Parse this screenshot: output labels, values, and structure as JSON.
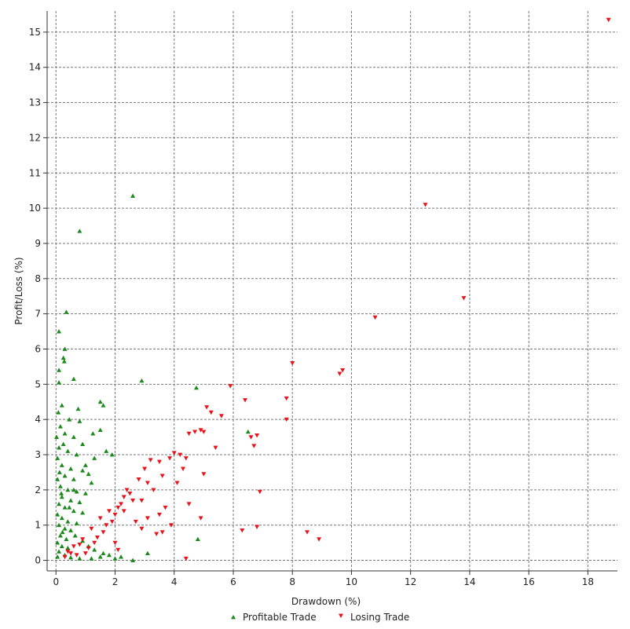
{
  "chart_data": {
    "type": "scatter",
    "xlabel": "Drawdown (%)",
    "ylabel": "Profit/Loss (%)",
    "xlim": [
      -0.3,
      19
    ],
    "ylim": [
      -0.3,
      15.6
    ],
    "x_ticks": [
      0,
      2,
      4,
      6,
      8,
      10,
      12,
      14,
      16,
      18
    ],
    "y_ticks": [
      0,
      1,
      2,
      3,
      4,
      5,
      6,
      7,
      8,
      9,
      10,
      11,
      12,
      13,
      14,
      15
    ],
    "grid": true,
    "legend_position": "bottom",
    "series": [
      {
        "name": "Profitable Trade",
        "color": "#1a8a1a",
        "marker": "triangle-up",
        "points": [
          [
            0.8,
            9.35
          ],
          [
            2.6,
            10.35
          ],
          [
            0.35,
            7.05
          ],
          [
            0.1,
            6.5
          ],
          [
            0.3,
            6.0
          ],
          [
            0.25,
            5.75
          ],
          [
            0.28,
            5.65
          ],
          [
            0.1,
            5.4
          ],
          [
            0.6,
            5.15
          ],
          [
            2.9,
            5.1
          ],
          [
            4.75,
            4.9
          ],
          [
            0.1,
            5.05
          ],
          [
            1.5,
            4.5
          ],
          [
            0.2,
            4.4
          ],
          [
            1.6,
            4.4
          ],
          [
            0.45,
            4.0
          ],
          [
            0.8,
            3.95
          ],
          [
            0.15,
            3.8
          ],
          [
            1.5,
            3.7
          ],
          [
            0.3,
            3.6
          ],
          [
            0.6,
            3.5
          ],
          [
            0.9,
            3.3
          ],
          [
            1.7,
            3.1
          ],
          [
            0.1,
            3.2
          ],
          [
            0.4,
            3.1
          ],
          [
            0.7,
            3.0
          ],
          [
            1.3,
            2.9
          ],
          [
            0.05,
            2.9
          ],
          [
            0.2,
            2.7
          ],
          [
            0.5,
            2.6
          ],
          [
            0.9,
            2.55
          ],
          [
            1.1,
            2.45
          ],
          [
            0.3,
            2.4
          ],
          [
            0.6,
            2.3
          ],
          [
            1.2,
            2.2
          ],
          [
            0.05,
            2.3
          ],
          [
            0.15,
            2.1
          ],
          [
            0.4,
            2.0
          ],
          [
            0.7,
            1.95
          ],
          [
            1.0,
            1.9
          ],
          [
            0.2,
            1.8
          ],
          [
            0.5,
            1.7
          ],
          [
            0.8,
            1.65
          ],
          [
            0.1,
            1.6
          ],
          [
            0.3,
            1.5
          ],
          [
            0.6,
            1.4
          ],
          [
            0.9,
            1.35
          ],
          [
            0.05,
            1.3
          ],
          [
            0.2,
            1.2
          ],
          [
            0.4,
            1.1
          ],
          [
            0.7,
            1.05
          ],
          [
            0.1,
            1.0
          ],
          [
            0.3,
            0.9
          ],
          [
            0.5,
            0.85
          ],
          [
            0.15,
            0.7
          ],
          [
            0.35,
            0.6
          ],
          [
            0.05,
            0.5
          ],
          [
            0.2,
            0.4
          ],
          [
            0.4,
            0.35
          ],
          [
            0.1,
            0.25
          ],
          [
            0.3,
            0.15
          ],
          [
            0.05,
            0.1
          ],
          [
            0.5,
            0.08
          ],
          [
            0.8,
            0.05
          ],
          [
            1.2,
            0.05
          ],
          [
            1.5,
            0.1
          ],
          [
            2.0,
            0.05
          ],
          [
            2.6,
            0.0
          ],
          [
            3.1,
            0.2
          ],
          [
            4.8,
            0.6
          ],
          [
            6.5,
            3.65
          ],
          [
            0.02,
            3.5
          ],
          [
            0.08,
            4.2
          ],
          [
            0.12,
            2.5
          ],
          [
            0.25,
            3.3
          ],
          [
            0.18,
            1.9
          ],
          [
            0.22,
            0.8
          ],
          [
            0.6,
            2.0
          ],
          [
            1.0,
            2.7
          ],
          [
            0.45,
            1.5
          ],
          [
            0.65,
            0.7
          ],
          [
            0.9,
            0.55
          ],
          [
            1.1,
            0.4
          ],
          [
            1.3,
            0.3
          ],
          [
            1.6,
            0.2
          ],
          [
            1.8,
            0.15
          ],
          [
            2.2,
            0.1
          ],
          [
            0.75,
            4.3
          ],
          [
            1.25,
            3.6
          ],
          [
            1.9,
            3.0
          ]
        ]
      },
      {
        "name": "Losing Trade",
        "color": "#e8131b",
        "marker": "triangle-down",
        "points": [
          [
            18.7,
            15.35
          ],
          [
            12.5,
            10.1
          ],
          [
            13.8,
            7.45
          ],
          [
            10.8,
            6.9
          ],
          [
            8.0,
            5.6
          ],
          [
            9.7,
            5.4
          ],
          [
            9.6,
            5.3
          ],
          [
            5.9,
            4.95
          ],
          [
            7.8,
            4.6
          ],
          [
            6.4,
            4.55
          ],
          [
            5.1,
            4.35
          ],
          [
            5.6,
            4.1
          ],
          [
            5.25,
            4.2
          ],
          [
            7.8,
            4.0
          ],
          [
            4.9,
            3.7
          ],
          [
            4.7,
            3.65
          ],
          [
            5.0,
            3.65
          ],
          [
            4.5,
            3.6
          ],
          [
            6.8,
            3.55
          ],
          [
            6.6,
            3.5
          ],
          [
            6.7,
            3.25
          ],
          [
            5.4,
            3.2
          ],
          [
            4.0,
            3.05
          ],
          [
            4.2,
            3.0
          ],
          [
            3.85,
            2.9
          ],
          [
            4.4,
            2.9
          ],
          [
            3.2,
            2.85
          ],
          [
            3.5,
            2.8
          ],
          [
            4.3,
            2.6
          ],
          [
            3.0,
            2.6
          ],
          [
            5.0,
            2.45
          ],
          [
            3.6,
            2.4
          ],
          [
            2.8,
            2.3
          ],
          [
            4.1,
            2.2
          ],
          [
            3.3,
            2.0
          ],
          [
            6.9,
            1.95
          ],
          [
            2.5,
            1.9
          ],
          [
            4.5,
            1.6
          ],
          [
            2.9,
            1.7
          ],
          [
            3.7,
            1.5
          ],
          [
            2.3,
            1.4
          ],
          [
            3.5,
            1.3
          ],
          [
            4.9,
            1.2
          ],
          [
            2.7,
            1.1
          ],
          [
            3.9,
            1.0
          ],
          [
            6.8,
            0.95
          ],
          [
            2.9,
            0.9
          ],
          [
            6.3,
            0.85
          ],
          [
            8.5,
            0.8
          ],
          [
            3.4,
            0.75
          ],
          [
            8.9,
            0.6
          ],
          [
            2.0,
            0.5
          ],
          [
            4.4,
            0.05
          ],
          [
            1.0,
            0.2
          ],
          [
            1.3,
            0.5
          ],
          [
            1.6,
            0.8
          ],
          [
            1.9,
            1.1
          ],
          [
            2.1,
            1.5
          ],
          [
            2.3,
            1.8
          ],
          [
            1.2,
            0.9
          ],
          [
            0.9,
            0.6
          ],
          [
            0.6,
            0.4
          ],
          [
            0.4,
            0.25
          ],
          [
            0.3,
            0.1
          ],
          [
            0.7,
            0.15
          ],
          [
            1.1,
            0.35
          ],
          [
            1.4,
            0.65
          ],
          [
            1.7,
            1.0
          ],
          [
            2.0,
            1.3
          ],
          [
            2.2,
            1.6
          ],
          [
            0.5,
            0.2
          ],
          [
            0.8,
            0.45
          ],
          [
            1.5,
            1.2
          ],
          [
            1.8,
            1.4
          ],
          [
            2.4,
            2.0
          ],
          [
            2.6,
            1.7
          ],
          [
            3.1,
            1.2
          ],
          [
            3.6,
            0.8
          ],
          [
            3.1,
            2.2
          ],
          [
            2.1,
            0.3
          ]
        ]
      }
    ]
  }
}
